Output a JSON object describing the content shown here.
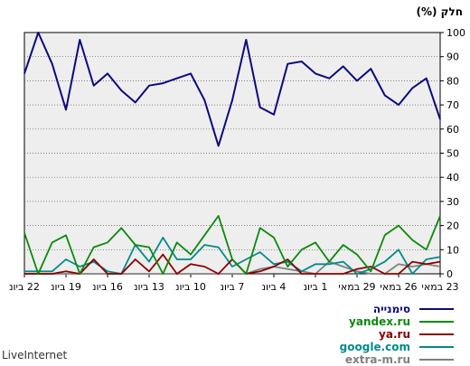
{
  "chart_data": {
    "type": "line",
    "ylabel": "חלק (%)",
    "ylim": [
      0,
      100
    ],
    "yticks": [
      0,
      10,
      20,
      30,
      40,
      50,
      60,
      70,
      80,
      90,
      100
    ],
    "xtick_labels": [
      "22 ביונ",
      "19 ביונ",
      "16 ביונ",
      "13 ביונ",
      "10 ביונ",
      "7 ביונ",
      "4 ביונ",
      "1 ביונ",
      "29 במאי",
      "26 במאי",
      "23 במאי"
    ],
    "grid": true,
    "legend_position": "bottom-right",
    "series": [
      {
        "name": "סימנייה",
        "color": "#0a0a80",
        "values": [
          83,
          100,
          87,
          68,
          97,
          78,
          83,
          76,
          71,
          78,
          79,
          81,
          83,
          72,
          53,
          72,
          97,
          69,
          66,
          87,
          88,
          83,
          81,
          86,
          80,
          85,
          74,
          70,
          77,
          81,
          64
        ]
      },
      {
        "name": "yandex.ru",
        "color": "#0a8a0a",
        "values": [
          17,
          0,
          13,
          16,
          0,
          11,
          13,
          19,
          12,
          11,
          0,
          13,
          8,
          16,
          24,
          6,
          0,
          19,
          15,
          3,
          10,
          13,
          5,
          12,
          8,
          1,
          16,
          20,
          14,
          10,
          24
        ]
      },
      {
        "name": "ya.ru",
        "color": "#8b0000",
        "values": [
          0,
          0,
          0,
          1,
          0,
          6,
          0,
          0,
          6,
          1,
          8,
          0,
          4,
          3,
          0,
          6,
          0,
          1,
          3,
          6,
          0,
          0,
          0,
          0,
          2,
          3,
          0,
          0,
          5,
          4,
          5
        ]
      },
      {
        "name": "google.com",
        "color": "#008b8b",
        "values": [
          1,
          1,
          1,
          6,
          3,
          5,
          1,
          0,
          12,
          5,
          15,
          6,
          6,
          12,
          11,
          3,
          6,
          9,
          4,
          5,
          1,
          4,
          4,
          5,
          0,
          2,
          5,
          10,
          0,
          6,
          7
        ]
      },
      {
        "name": "extra-m.ru",
        "color": "#808080",
        "values": [
          0,
          0,
          0,
          0,
          0,
          0,
          0,
          0,
          0,
          0,
          0,
          0,
          0,
          0,
          0,
          0,
          0,
          2,
          3,
          2,
          1,
          0,
          5,
          3,
          1,
          0,
          0,
          4,
          3,
          4,
          3
        ]
      }
    ]
  },
  "watermark": "LiveInternet"
}
